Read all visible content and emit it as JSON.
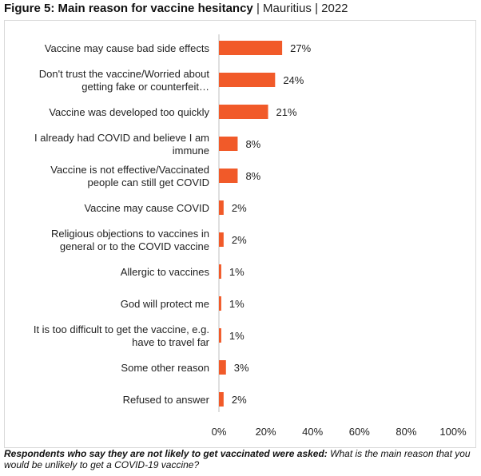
{
  "title": {
    "main": "Figure 5: Main reason for vaccine hesitancy",
    "country": "Mauritius",
    "year": "2022",
    "sep": "|"
  },
  "chart_data": {
    "type": "bar",
    "orientation": "horizontal",
    "categories": [
      [
        "Vaccine may cause bad side effects"
      ],
      [
        "Don't trust the vaccine/Worried about",
        "getting fake or counterfeit…"
      ],
      [
        "Vaccine was developed too quickly"
      ],
      [
        "I already had COVID and believe I am",
        "immune"
      ],
      [
        "Vaccine is not effective/Vaccinated",
        "people can still get COVID"
      ],
      [
        "Vaccine may cause COVID"
      ],
      [
        "Religious objections to vaccines in",
        "general or to the COVID vaccine"
      ],
      [
        "Allergic to vaccines"
      ],
      [
        "God will protect me"
      ],
      [
        "It is too difficult to get the vaccine, e.g.",
        "have to travel far"
      ],
      [
        "Some other reason"
      ],
      [
        "Refused to answer"
      ]
    ],
    "values": [
      27,
      24,
      21,
      8,
      8,
      2,
      2,
      1,
      1,
      1,
      3,
      2
    ],
    "data_labels": [
      "27%",
      "24%",
      "21%",
      "8%",
      "8%",
      "2%",
      "2%",
      "1%",
      "1%",
      "1%",
      "3%",
      "2%"
    ],
    "xlim": [
      0,
      100
    ],
    "xticks": [
      0,
      20,
      40,
      60,
      80,
      100
    ],
    "xtick_labels": [
      "0%",
      "20%",
      "40%",
      "60%",
      "80%",
      "100%"
    ],
    "bar_color": "#f15a29",
    "grid": false
  },
  "note": {
    "bold": "Respondents who say they are not likely to get vaccinated were asked:",
    "italic": "What is the main reason that you would be unlikely to get a COVID-19 vaccine?"
  }
}
